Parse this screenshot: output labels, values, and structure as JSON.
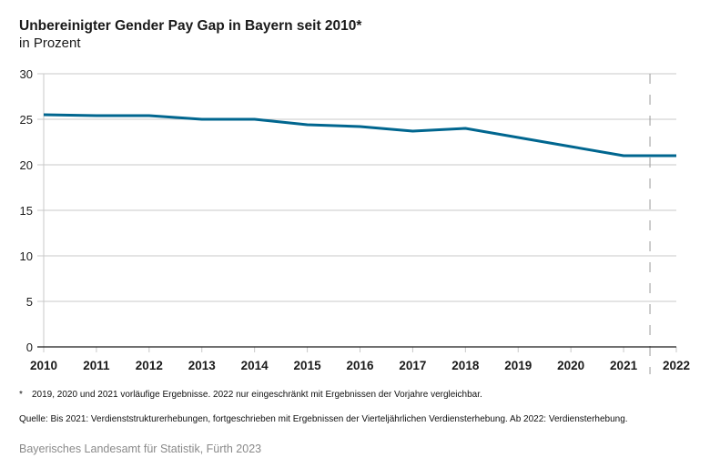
{
  "header": {
    "title": "Unbereinigter Gender Pay Gap in Bayern seit 2010*",
    "subtitle": "in Prozent"
  },
  "chart_data": {
    "type": "line",
    "title": "Unbereinigter Gender Pay Gap in Bayern seit 2010*",
    "subtitle": "in Prozent",
    "xlabel": "",
    "ylabel": "in Prozent",
    "x": [
      "2010",
      "2011",
      "2012",
      "2013",
      "2014",
      "2015",
      "2016",
      "2017",
      "2018",
      "2019",
      "2020",
      "2021",
      "2022"
    ],
    "series": [
      {
        "name": "Gender Pay Gap",
        "color": "#00668f",
        "values": [
          25.5,
          25.4,
          25.4,
          25.0,
          25.0,
          24.4,
          24.2,
          23.7,
          24.0,
          23.0,
          22.0,
          21.0,
          21.0
        ]
      }
    ],
    "ylim": [
      0,
      30
    ],
    "yticks": [
      0,
      5,
      10,
      15,
      20,
      25,
      30
    ],
    "grid": true,
    "legend": "none",
    "annotations": [
      {
        "type": "dashed-vertical-line",
        "between": [
          "2021",
          "2022"
        ],
        "meaning": "break in series (method change)"
      }
    ]
  },
  "footnotes": {
    "star": "*",
    "note": "2019, 2020 und 2021 vorläufige Ergebnisse. 2022 nur eingeschränkt mit Ergebnissen der Vorjahre vergleichbar.",
    "source": "Quelle: Bis 2021: Verdienststrukturerhebungen, fortgeschrieben mit Ergebnissen der Vierteljährlichen Verdiensterhebung. Ab 2022: Verdiensterhebung."
  },
  "credit": "Bayerisches Landesamt für Statistik, Fürth 2023"
}
